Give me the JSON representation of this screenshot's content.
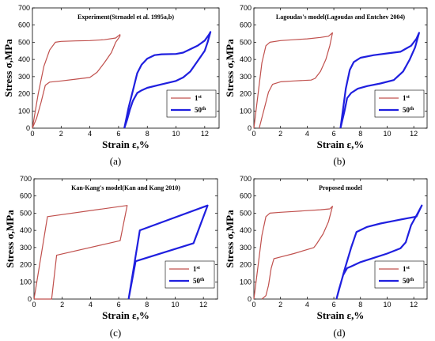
{
  "chart_data": [
    {
      "type": "line",
      "title": "Experiment(Strnadel et al. 1995a,b)",
      "sublabel": "(a)",
      "xlabel": "Strain  ε,%",
      "ylabel": "Stress  σ,MPa",
      "xlim": [
        0,
        13
      ],
      "ylim": [
        0,
        700
      ],
      "xticks": [
        0,
        2,
        4,
        6,
        8,
        10,
        12
      ],
      "yticks": [
        0,
        100,
        200,
        300,
        400,
        500,
        600,
        700
      ],
      "grid": false,
      "legend_position": "lower-right",
      "series": [
        {
          "name": "1st",
          "color": "#c0504d",
          "width": 1.2,
          "x": [
            0,
            0.4,
            0.8,
            1.2,
            1.6,
            2,
            3,
            4,
            5,
            5.8,
            6.1,
            6.1,
            5.8,
            5.5,
            5,
            4.5,
            4,
            3,
            2,
            1.2,
            0.9,
            0.6,
            0.3,
            0
          ],
          "y": [
            0,
            200,
            360,
            455,
            500,
            505,
            508,
            510,
            515,
            525,
            545,
            535,
            500,
            440,
            380,
            325,
            295,
            285,
            275,
            268,
            250,
            150,
            60,
            0
          ]
        },
        {
          "name": "50th",
          "color": "#1f1fdf",
          "width": 2.2,
          "x": [
            6.4,
            6.7,
            7,
            7.3,
            7.6,
            8,
            8.5,
            9,
            10,
            10.5,
            11,
            11.5,
            12,
            12.3,
            12.4,
            12.2,
            12,
            11.5,
            11,
            10.5,
            10,
            9,
            8,
            7.6,
            7.3,
            7,
            6.8,
            6.6,
            6.4
          ],
          "y": [
            0,
            120,
            220,
            320,
            370,
            405,
            425,
            430,
            432,
            440,
            460,
            480,
            510,
            545,
            560,
            500,
            450,
            390,
            330,
            295,
            275,
            255,
            235,
            220,
            205,
            160,
            110,
            50,
            0
          ]
        }
      ]
    },
    {
      "type": "line",
      "title": "Lagoudas's model(Lagoudas and Entchev 2004)",
      "sublabel": "(b)",
      "xlabel": "Strain  ε,%",
      "ylabel": "Stress  σ,MPa",
      "xlim": [
        0,
        13
      ],
      "ylim": [
        0,
        700
      ],
      "xticks": [
        0,
        2,
        4,
        6,
        8,
        10,
        12
      ],
      "yticks": [
        0,
        100,
        200,
        300,
        400,
        500,
        600,
        700
      ],
      "grid": false,
      "legend_position": "lower-right",
      "series": [
        {
          "name": "1st",
          "color": "#c0504d",
          "width": 1.2,
          "x": [
            0,
            0.6,
            0.9,
            1.2,
            2,
            3,
            4,
            5,
            5.6,
            5.9,
            5.7,
            5.4,
            5,
            4.6,
            4.3,
            3,
            2,
            1.4,
            1.1,
            0.8,
            0.4
          ],
          "y": [
            0,
            380,
            480,
            500,
            510,
            515,
            520,
            528,
            535,
            555,
            480,
            400,
            330,
            290,
            280,
            275,
            270,
            255,
            210,
            120,
            0
          ]
        },
        {
          "name": "50th",
          "color": "#1f1fdf",
          "width": 2.2,
          "x": [
            6.5,
            6.9,
            7.2,
            7.5,
            8,
            9,
            10,
            11,
            11.8,
            12.2,
            12.4,
            12.1,
            11.7,
            11.2,
            10.5,
            9.5,
            8.5,
            7.8,
            7.3,
            7,
            6.8,
            6.5
          ],
          "y": [
            0,
            230,
            340,
            385,
            410,
            425,
            435,
            445,
            480,
            520,
            555,
            470,
            400,
            330,
            280,
            260,
            245,
            230,
            205,
            175,
            100,
            0
          ]
        }
      ]
    },
    {
      "type": "line",
      "title": "Kan-Kang's model(Kan and Kang 2010)",
      "sublabel": "(c)",
      "xlabel": "Strain  ε,%",
      "ylabel": "Stress  σ,MPa",
      "xlim": [
        0,
        13
      ],
      "ylim": [
        0,
        700
      ],
      "xticks": [
        0,
        2,
        4,
        6,
        8,
        10,
        12
      ],
      "yticks": [
        0,
        100,
        200,
        300,
        400,
        500,
        600,
        700
      ],
      "grid": false,
      "legend_position": "lower-right",
      "series": [
        {
          "name": "1st",
          "color": "#c0504d",
          "width": 1.2,
          "x": [
            0,
            0.95,
            6.6,
            6.1,
            1.6,
            1.25,
            0.05
          ],
          "y": [
            0,
            480,
            545,
            340,
            255,
            0,
            0
          ]
        },
        {
          "name": "50th",
          "color": "#1f1fdf",
          "width": 2.2,
          "x": [
            6.7,
            7.5,
            12.3,
            11.3,
            7.2,
            6.7
          ],
          "y": [
            0,
            400,
            545,
            325,
            220,
            0
          ]
        }
      ]
    },
    {
      "type": "line",
      "title": "Proposed model",
      "sublabel": "(d)",
      "xlabel": "Strain  ε,%",
      "ylabel": "Stress  σ,MPa",
      "xlim": [
        0,
        13
      ],
      "ylim": [
        0,
        700
      ],
      "xticks": [
        0,
        2,
        4,
        6,
        8,
        10,
        12
      ],
      "yticks": [
        0,
        100,
        200,
        300,
        400,
        500,
        600,
        700
      ],
      "grid": false,
      "legend_position": "lower-right",
      "series": [
        {
          "name": "1st",
          "color": "#c0504d",
          "width": 1.2,
          "x": [
            0,
            0.6,
            0.9,
            1.2,
            2,
            3,
            4,
            5,
            5.7,
            5.9,
            5.6,
            5.2,
            4.7,
            4.5,
            3,
            2,
            1.5,
            1.3,
            1.1,
            0.9,
            0.6
          ],
          "y": [
            0,
            370,
            480,
            500,
            505,
            510,
            515,
            520,
            525,
            540,
            450,
            380,
            320,
            300,
            265,
            245,
            235,
            180,
            80,
            20,
            0
          ]
        },
        {
          "name": "50th",
          "color": "#1f1fdf",
          "width": 2.2,
          "x": [
            6.2,
            6.8,
            7.3,
            7.7,
            8.5,
            9.5,
            10.5,
            11.5,
            12.2,
            12.6,
            12.3,
            11.8,
            11.4,
            11,
            10,
            9,
            8,
            7.3,
            7,
            6.7,
            6.4,
            6.2
          ],
          "y": [
            0,
            170,
            300,
            390,
            420,
            440,
            455,
            470,
            480,
            545,
            500,
            430,
            330,
            295,
            265,
            240,
            215,
            190,
            180,
            140,
            60,
            0
          ]
        }
      ]
    }
  ]
}
